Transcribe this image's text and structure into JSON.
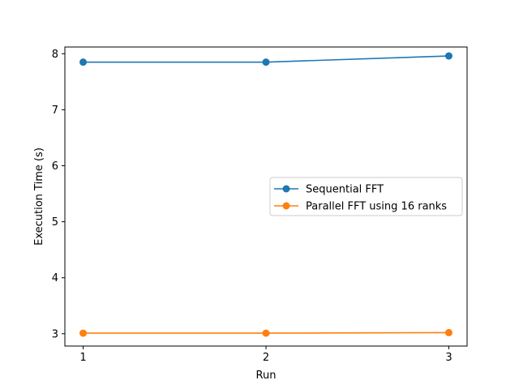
{
  "chart_data": {
    "type": "line",
    "title": "",
    "xlabel": "Run",
    "ylabel": "Execution Time (s)",
    "x": [
      1,
      2,
      3
    ],
    "xticks": [
      "1",
      "2",
      "3"
    ],
    "yticks": [
      "3",
      "4",
      "5",
      "6",
      "7",
      "8"
    ],
    "xlim": [
      0.9,
      3.1
    ],
    "ylim": [
      2.78,
      8.12
    ],
    "grid": false,
    "legend_position": "center-right",
    "series": [
      {
        "name": "Sequential FFT",
        "color": "#1f77b4",
        "marker": "circle",
        "values": [
          7.85,
          7.85,
          7.96
        ]
      },
      {
        "name": "Parallel FFT using 16 ranks",
        "color": "#ff7f0e",
        "marker": "circle",
        "values": [
          3.01,
          3.01,
          3.02
        ]
      }
    ]
  }
}
